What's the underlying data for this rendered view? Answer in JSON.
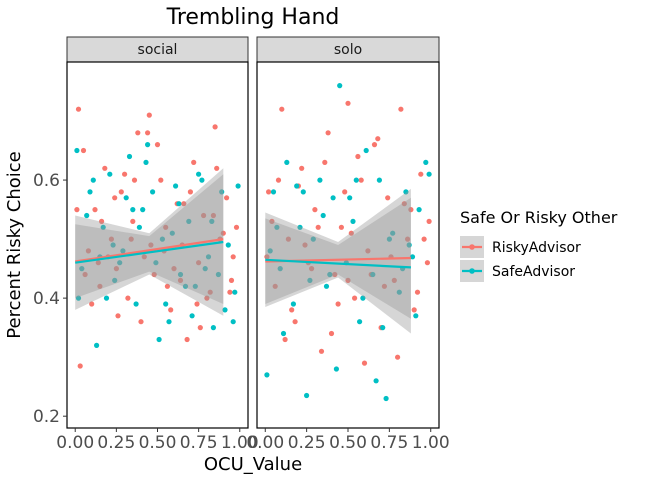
{
  "chart_data": {
    "type": "scatter",
    "title": "Trembling Hand",
    "xlabel": "OCU_Value",
    "ylabel": "Percent Risky Choice",
    "xlim": [
      -0.05,
      1.05
    ],
    "ylim": [
      0.18,
      0.8
    ],
    "x_ticks": [
      0.0,
      0.25,
      0.5,
      0.75,
      1.0
    ],
    "x_tick_labels": [
      "0.00",
      "0.25",
      "0.50",
      "0.75",
      "1.00"
    ],
    "y_ticks": [
      0.2,
      0.4,
      0.6
    ],
    "y_tick_labels": [
      "0.2",
      "0.4",
      "0.6"
    ],
    "grid": false,
    "legend": {
      "title": "Safe Or Risky Other",
      "position": "right",
      "entries": [
        {
          "label": "RiskyAdvisor",
          "color": "#F8766D"
        },
        {
          "label": "SafeAdvisor",
          "color": "#00BFC4"
        }
      ]
    },
    "colors": {
      "RiskyAdvisor": "#F8766D",
      "SafeAdvisor": "#00BFC4",
      "band": "#999999",
      "strip": "#d9d9d9"
    },
    "panels": [
      {
        "name": "social",
        "lines": [
          {
            "series": "RiskyAdvisor",
            "x": [
              0.0,
              0.9
            ],
            "y": [
              0.462,
              0.5
            ]
          },
          {
            "series": "SafeAdvisor",
            "x": [
              0.0,
              0.9
            ],
            "y": [
              0.46,
              0.495
            ]
          }
        ],
        "bands": [
          {
            "series": "RiskyAdvisor",
            "x": [
              0.0,
              0.45,
              0.9
            ],
            "lower": [
              0.4,
              0.445,
              0.39
            ],
            "upper": [
              0.525,
              0.505,
              0.61
            ]
          },
          {
            "series": "SafeAdvisor",
            "x": [
              0.0,
              0.45,
              0.9
            ],
            "lower": [
              0.38,
              0.44,
              0.37
            ],
            "upper": [
              0.54,
              0.51,
              0.62
            ]
          }
        ],
        "points": [
          {
            "series": "RiskyAdvisor",
            "x": [
              0.02,
              0.05,
              0.08,
              0.12,
              0.15,
              0.18,
              0.22,
              0.25,
              0.28,
              0.32,
              0.35,
              0.38,
              0.42,
              0.45,
              0.48,
              0.52,
              0.55,
              0.58,
              0.62,
              0.65,
              0.68,
              0.72,
              0.75,
              0.78,
              0.82,
              0.85,
              0.88,
              0.92,
              0.95,
              0.98,
              0.03,
              0.1,
              0.2,
              0.3,
              0.4,
              0.5,
              0.6,
              0.7,
              0.8,
              0.9,
              0.06,
              0.16,
              0.26,
              0.36,
              0.46,
              0.56,
              0.66,
              0.76,
              0.86,
              0.96,
              0.01,
              0.14,
              0.34,
              0.44,
              0.64,
              0.74,
              0.84,
              0.94,
              0.24,
              0.54
            ],
            "y": [
              0.72,
              0.65,
              0.48,
              0.55,
              0.42,
              0.62,
              0.5,
              0.45,
              0.58,
              0.4,
              0.53,
              0.68,
              0.47,
              0.71,
              0.44,
              0.6,
              0.52,
              0.38,
              0.56,
              0.49,
              0.33,
              0.63,
              0.46,
              0.54,
              0.41,
              0.69,
              0.5,
              0.57,
              0.43,
              0.52,
              0.285,
              0.39,
              0.47,
              0.61,
              0.36,
              0.66,
              0.45,
              0.58,
              0.4,
              0.51,
              0.44,
              0.53,
              0.37,
              0.6,
              0.49,
              0.42,
              0.56,
              0.35,
              0.62,
              0.47,
              0.55,
              0.46,
              0.5,
              0.68,
              0.43,
              0.39,
              0.54,
              0.41,
              0.57,
              0.48
            ]
          },
          {
            "series": "SafeAdvisor",
            "x": [
              0.01,
              0.04,
              0.09,
              0.13,
              0.17,
              0.21,
              0.24,
              0.29,
              0.33,
              0.37,
              0.41,
              0.44,
              0.49,
              0.53,
              0.57,
              0.61,
              0.64,
              0.69,
              0.73,
              0.77,
              0.81,
              0.84,
              0.89,
              0.93,
              0.97,
              0.99,
              0.07,
              0.19,
              0.31,
              0.43,
              0.59,
              0.71,
              0.87,
              0.11,
              0.27,
              0.39,
              0.51,
              0.63,
              0.79,
              0.91,
              0.02,
              0.23,
              0.47,
              0.67,
              0.83,
              0.96,
              0.15,
              0.35,
              0.55,
              0.75
            ],
            "y": [
              0.65,
              0.45,
              0.58,
              0.32,
              0.52,
              0.61,
              0.43,
              0.48,
              0.64,
              0.39,
              0.55,
              0.66,
              0.46,
              0.5,
              0.36,
              0.59,
              0.44,
              0.53,
              0.42,
              0.6,
              0.47,
              0.35,
              0.58,
              0.49,
              0.41,
              0.59,
              0.54,
              0.4,
              0.57,
              0.63,
              0.51,
              0.37,
              0.44,
              0.6,
              0.46,
              0.52,
              0.33,
              0.56,
              0.45,
              0.38,
              0.4,
              0.49,
              0.58,
              0.42,
              0.53,
              0.36,
              0.47,
              0.55,
              0.39,
              0.61
            ]
          }
        ]
      },
      {
        "name": "solo",
        "lines": [
          {
            "series": "RiskyAdvisor",
            "x": [
              0.0,
              0.88
            ],
            "y": [
              0.462,
              0.468
            ]
          },
          {
            "series": "SafeAdvisor",
            "x": [
              0.0,
              0.88
            ],
            "y": [
              0.465,
              0.452
            ]
          }
        ],
        "bands": [
          {
            "series": "RiskyAdvisor",
            "x": [
              0.0,
              0.44,
              0.88
            ],
            "lower": [
              0.39,
              0.44,
              0.365
            ],
            "upper": [
              0.535,
              0.49,
              0.57
            ]
          },
          {
            "series": "SafeAdvisor",
            "x": [
              0.0,
              0.44,
              0.88
            ],
            "lower": [
              0.385,
              0.435,
              0.34
            ],
            "upper": [
              0.545,
              0.495,
              0.585
            ]
          }
        ],
        "points": [
          {
            "series": "RiskyAdvisor",
            "x": [
              0.02,
              0.06,
              0.1,
              0.14,
              0.18,
              0.22,
              0.26,
              0.3,
              0.34,
              0.38,
              0.42,
              0.46,
              0.5,
              0.54,
              0.58,
              0.62,
              0.66,
              0.7,
              0.74,
              0.78,
              0.82,
              0.86,
              0.9,
              0.94,
              0.98,
              0.04,
              0.12,
              0.2,
              0.28,
              0.36,
              0.44,
              0.52,
              0.6,
              0.68,
              0.76,
              0.84,
              0.92,
              0.08,
              0.24,
              0.4,
              0.56,
              0.72,
              0.88,
              0.16,
              0.32,
              0.48,
              0.64,
              0.8,
              0.96,
              0.01,
              0.5,
              0.99
            ],
            "y": [
              0.58,
              0.42,
              0.72,
              0.5,
              0.36,
              0.62,
              0.46,
              0.55,
              0.31,
              0.68,
              0.44,
              0.52,
              0.73,
              0.4,
              0.6,
              0.48,
              0.66,
              0.35,
              0.57,
              0.43,
              0.72,
              0.5,
              0.38,
              0.61,
              0.46,
              0.53,
              0.33,
              0.59,
              0.45,
              0.63,
              0.39,
              0.51,
              0.29,
              0.67,
              0.47,
              0.56,
              0.41,
              0.6,
              0.49,
              0.34,
              0.64,
              0.42,
              0.55,
              0.38,
              0.52,
              0.58,
              0.44,
              0.3,
              0.5,
              0.47,
              0.43,
              0.53
            ]
          },
          {
            "series": "SafeAdvisor",
            "x": [
              0.01,
              0.05,
              0.09,
              0.13,
              0.17,
              0.21,
              0.25,
              0.29,
              0.33,
              0.37,
              0.41,
              0.45,
              0.49,
              0.53,
              0.57,
              0.61,
              0.65,
              0.69,
              0.73,
              0.77,
              0.81,
              0.85,
              0.89,
              0.93,
              0.97,
              0.03,
              0.11,
              0.19,
              0.27,
              0.35,
              0.43,
              0.51,
              0.59,
              0.67,
              0.75,
              0.83,
              0.91,
              0.07,
              0.23,
              0.39,
              0.55,
              0.71,
              0.87,
              0.99
            ],
            "y": [
              0.27,
              0.58,
              0.45,
              0.63,
              0.39,
              0.52,
              0.235,
              0.5,
              0.6,
              0.42,
              0.57,
              0.76,
              0.46,
              0.53,
              0.36,
              0.65,
              0.44,
              0.6,
              0.23,
              0.51,
              0.41,
              0.58,
              0.47,
              0.55,
              0.63,
              0.48,
              0.34,
              0.59,
              0.43,
              0.54,
              0.28,
              0.57,
              0.4,
              0.26,
              0.5,
              0.45,
              0.37,
              0.52,
              0.58,
              0.44,
              0.6,
              0.35,
              0.49,
              0.61
            ]
          }
        ]
      }
    ]
  }
}
